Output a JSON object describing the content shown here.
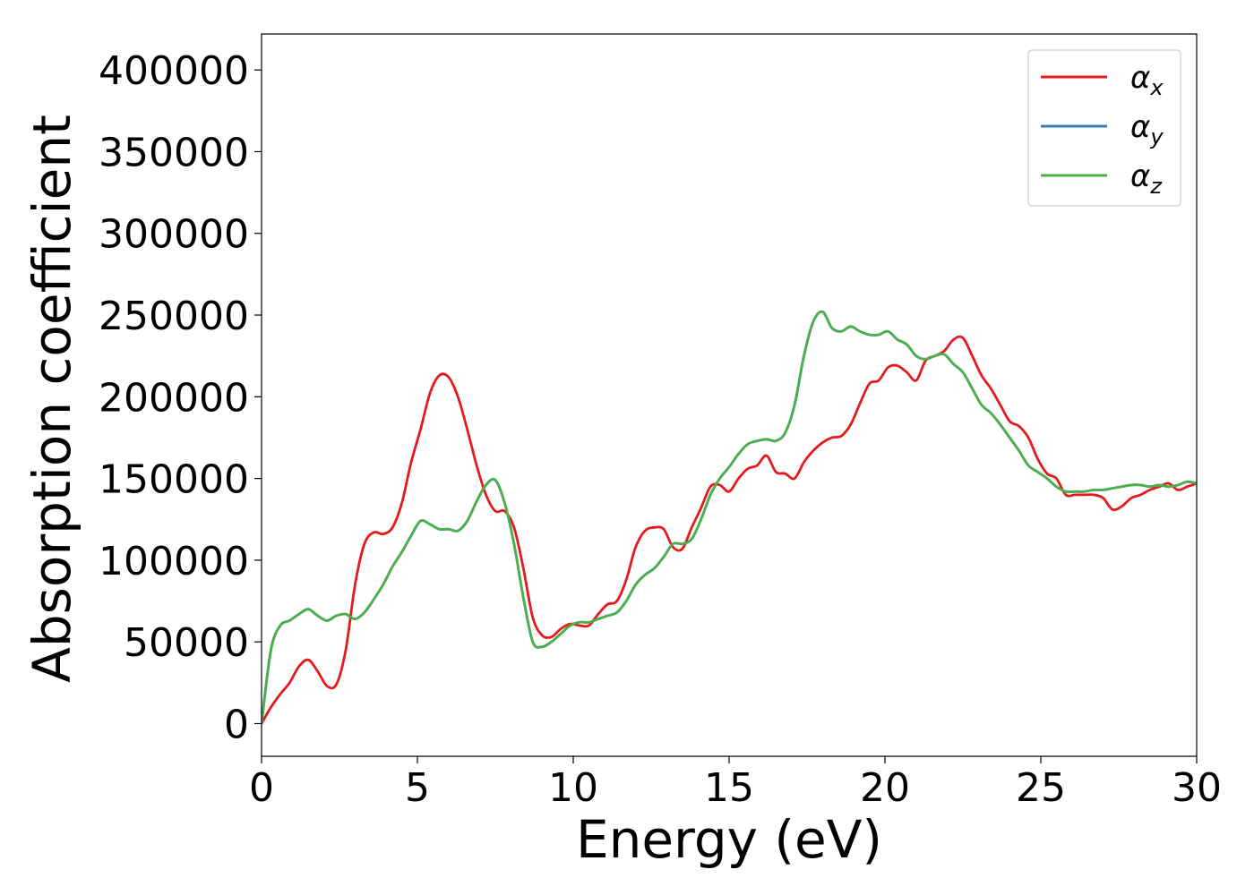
{
  "chart_data": {
    "type": "line",
    "title": "",
    "xlabel": "Energy (eV)",
    "ylabel": "Absorption coefficient",
    "xlim": [
      0,
      30
    ],
    "ylim": [
      -20000,
      422000
    ],
    "xticks": [
      0,
      5,
      10,
      15,
      20,
      25,
      30
    ],
    "yticks": [
      0,
      50000,
      100000,
      150000,
      200000,
      250000,
      300000,
      350000,
      400000
    ],
    "grid": false,
    "legend_position": "top-right",
    "series": [
      {
        "name": "αx",
        "label_main": "α",
        "label_sub": "x",
        "color": "#e41a1c",
        "x": [
          0,
          0.3,
          0.6,
          0.9,
          1.2,
          1.5,
          1.8,
          2.1,
          2.4,
          2.7,
          3.0,
          3.3,
          3.6,
          3.9,
          4.2,
          4.5,
          4.8,
          5.1,
          5.4,
          5.7,
          6.0,
          6.3,
          6.6,
          6.9,
          7.2,
          7.5,
          7.8,
          8.1,
          8.4,
          8.7,
          9.0,
          9.3,
          9.6,
          9.9,
          10.2,
          10.5,
          10.8,
          11.1,
          11.4,
          11.7,
          12.0,
          12.3,
          12.6,
          12.9,
          13.2,
          13.5,
          13.8,
          14.1,
          14.4,
          14.7,
          15.0,
          15.3,
          15.6,
          15.9,
          16.2,
          16.5,
          16.8,
          17.1,
          17.4,
          17.7,
          18.0,
          18.3,
          18.6,
          18.9,
          19.2,
          19.5,
          19.8,
          20.1,
          20.4,
          20.7,
          21.0,
          21.3,
          21.6,
          21.9,
          22.2,
          22.5,
          22.8,
          23.1,
          23.4,
          23.7,
          24.0,
          24.3,
          24.6,
          24.9,
          25.2,
          25.5,
          25.8,
          26.1,
          26.4,
          26.7,
          27.0,
          27.3,
          27.6,
          27.9,
          28.2,
          28.5,
          28.8,
          29.1,
          29.4,
          29.7,
          30.0
        ],
        "y": [
          0,
          10000,
          18000,
          25000,
          35000,
          39000,
          32000,
          23000,
          24000,
          45000,
          85000,
          110000,
          117000,
          116000,
          120000,
          135000,
          160000,
          180000,
          202000,
          213000,
          212000,
          200000,
          180000,
          158000,
          140000,
          130000,
          130000,
          120000,
          95000,
          65000,
          54000,
          53000,
          58000,
          61000,
          60000,
          60000,
          67000,
          73000,
          75000,
          88000,
          108000,
          118000,
          120000,
          119000,
          108000,
          107000,
          120000,
          132000,
          145000,
          146000,
          142000,
          150000,
          156000,
          158000,
          164000,
          154000,
          153000,
          150000,
          160000,
          167000,
          172000,
          175000,
          176000,
          183000,
          196000,
          208000,
          210000,
          218000,
          219000,
          215000,
          210000,
          222000,
          225000,
          228000,
          235000,
          236000,
          225000,
          213000,
          205000,
          195000,
          185000,
          182000,
          175000,
          162000,
          153000,
          150000,
          140000,
          140000,
          140000,
          140000,
          138000,
          131000,
          133000,
          138000,
          140000,
          143000,
          145000,
          147000,
          143000,
          145000,
          147000
        ]
      },
      {
        "name": "αy",
        "label_main": "α",
        "label_sub": "y",
        "color": "#377eb8",
        "x": [
          0,
          0.3,
          0.6,
          0.9,
          1.2,
          1.5,
          1.8,
          2.1,
          2.4,
          2.7,
          3.0,
          3.3,
          3.6,
          3.9,
          4.2,
          4.5,
          4.8,
          5.1,
          5.4,
          5.7,
          6.0,
          6.3,
          6.6,
          6.9,
          7.2,
          7.5,
          7.8,
          8.1,
          8.4,
          8.7,
          9.0,
          9.3,
          9.6,
          9.9,
          10.2,
          10.5,
          10.8,
          11.1,
          11.4,
          11.7,
          12.0,
          12.3,
          12.6,
          12.9,
          13.2,
          13.5,
          13.8,
          14.1,
          14.4,
          14.7,
          15.0,
          15.3,
          15.6,
          15.9,
          16.2,
          16.5,
          16.8,
          17.1,
          17.4,
          17.7,
          18.0,
          18.3,
          18.6,
          18.9,
          19.2,
          19.5,
          19.8,
          20.1,
          20.4,
          20.7,
          21.0,
          21.3,
          21.6,
          21.9,
          22.2,
          22.5,
          22.8,
          23.1,
          23.4,
          23.7,
          24.0,
          24.3,
          24.6,
          24.9,
          25.2,
          25.5,
          25.8,
          26.1,
          26.4,
          26.7,
          27.0,
          27.3,
          27.6,
          27.9,
          28.2,
          28.5,
          28.8,
          29.1,
          29.4,
          29.7,
          30.0
        ],
        "y": [
          0,
          45000,
          60000,
          63000,
          67000,
          70000,
          66000,
          63000,
          66000,
          67000,
          64000,
          68000,
          76000,
          85000,
          96000,
          105000,
          115000,
          124000,
          122000,
          119000,
          119000,
          118000,
          124000,
          136000,
          146000,
          149000,
          135000,
          110000,
          77000,
          50000,
          47000,
          50000,
          55000,
          60000,
          62000,
          62000,
          64000,
          66000,
          68000,
          75000,
          85000,
          91000,
          95000,
          102000,
          110000,
          110000,
          113000,
          125000,
          140000,
          150000,
          157000,
          165000,
          171000,
          173000,
          174000,
          173000,
          178000,
          195000,
          225000,
          246000,
          252000,
          242000,
          240000,
          243000,
          240000,
          238000,
          238000,
          240000,
          235000,
          232000,
          225000,
          223000,
          225000,
          226000,
          220000,
          215000,
          205000,
          195000,
          190000,
          183000,
          175000,
          167000,
          158000,
          154000,
          150000,
          145000,
          142000,
          142000,
          142000,
          143000,
          143000,
          144000,
          145000,
          146000,
          146000,
          145000,
          146000,
          145000,
          146000,
          148000,
          147000
        ]
      },
      {
        "name": "αz",
        "label_main": "α",
        "label_sub": "z",
        "color": "#4daf4a",
        "x": [
          0,
          0.3,
          0.6,
          0.9,
          1.2,
          1.5,
          1.8,
          2.1,
          2.4,
          2.7,
          3.0,
          3.3,
          3.6,
          3.9,
          4.2,
          4.5,
          4.8,
          5.1,
          5.4,
          5.7,
          6.0,
          6.3,
          6.6,
          6.9,
          7.2,
          7.5,
          7.8,
          8.1,
          8.4,
          8.7,
          9.0,
          9.3,
          9.6,
          9.9,
          10.2,
          10.5,
          10.8,
          11.1,
          11.4,
          11.7,
          12.0,
          12.3,
          12.6,
          12.9,
          13.2,
          13.5,
          13.8,
          14.1,
          14.4,
          14.7,
          15.0,
          15.3,
          15.6,
          15.9,
          16.2,
          16.5,
          16.8,
          17.1,
          17.4,
          17.7,
          18.0,
          18.3,
          18.6,
          18.9,
          19.2,
          19.5,
          19.8,
          20.1,
          20.4,
          20.7,
          21.0,
          21.3,
          21.6,
          21.9,
          22.2,
          22.5,
          22.8,
          23.1,
          23.4,
          23.7,
          24.0,
          24.3,
          24.6,
          24.9,
          25.2,
          25.5,
          25.8,
          26.1,
          26.4,
          26.7,
          27.0,
          27.3,
          27.6,
          27.9,
          28.2,
          28.5,
          28.8,
          29.1,
          29.4,
          29.7,
          30.0
        ],
        "y": [
          0,
          45000,
          60000,
          63000,
          67000,
          70000,
          66000,
          63000,
          66000,
          67000,
          64000,
          68000,
          76000,
          85000,
          96000,
          105000,
          115000,
          124000,
          122000,
          119000,
          119000,
          118000,
          124000,
          136000,
          146000,
          149000,
          135000,
          110000,
          77000,
          50000,
          47000,
          50000,
          55000,
          60000,
          62000,
          62000,
          64000,
          66000,
          68000,
          75000,
          85000,
          91000,
          95000,
          102000,
          110000,
          110000,
          113000,
          125000,
          140000,
          150000,
          157000,
          165000,
          171000,
          173000,
          174000,
          173000,
          178000,
          195000,
          225000,
          246000,
          252000,
          242000,
          240000,
          243000,
          240000,
          238000,
          238000,
          240000,
          235000,
          232000,
          225000,
          223000,
          225000,
          226000,
          220000,
          215000,
          205000,
          195000,
          190000,
          183000,
          175000,
          167000,
          158000,
          154000,
          150000,
          145000,
          142000,
          142000,
          142000,
          143000,
          143000,
          144000,
          145000,
          146000,
          146000,
          145000,
          146000,
          145000,
          146000,
          148000,
          147000
        ]
      }
    ]
  }
}
